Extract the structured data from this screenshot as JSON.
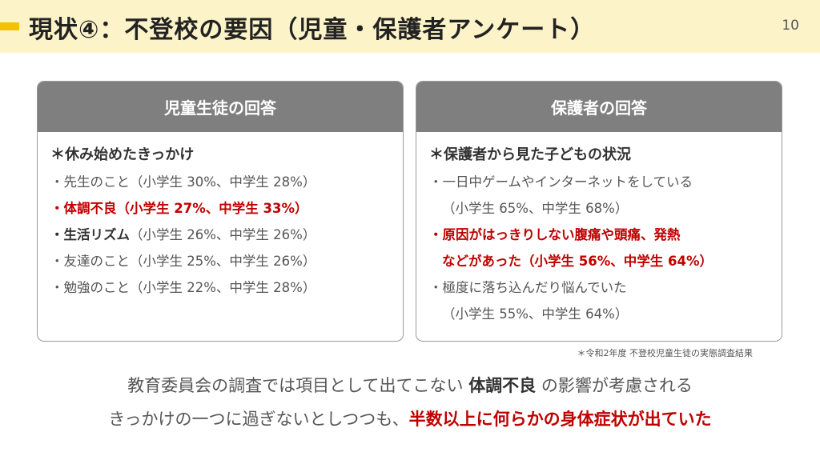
{
  "header": {
    "title": "現状④：不登校の要因（児童・保護者アンケート）",
    "page_number": "10"
  },
  "left_card": {
    "title": "児童生徒の回答",
    "heading": "＊休み始めたきっかけ",
    "items": [
      "・先生のこと（小学生 30%、中学生 28%）",
      "・体調不良（小学生 27%、中学生 33%）",
      "・生活リズム",
      "（小学生 26%、中学生 26%）",
      "・友達のこと（小学生 25%、中学生 26%）",
      "・勉強のこと（小学生 22%、中学生 28%）"
    ]
  },
  "right_card": {
    "title": "保護者の回答",
    "heading": "＊保護者から見た子どもの状況",
    "items": [
      "・一日中ゲームやインターネットをしている",
      "（小学生 65%、中学生 68%）",
      "・原因がはっきりしない腹痛や頭痛、発熱",
      "などがあった（小学生 56%、中学生 64%）",
      "・極度に落ち込んだり悩んでいた",
      "（小学生 55%、中学生 64%）"
    ]
  },
  "source_note": "＊令和2年度 不登校児童生徒の実態調査結果",
  "summary": {
    "line1_pre": "教育委員会の調査では項目として出てこない",
    "line1_emph": "体調不良",
    "line1_post": "の影響が考慮される",
    "line2_pre": "きっかけの一つに過ぎないとしつつも、",
    "line2_emph": "半数以上に何らかの身体症状が出ていた"
  }
}
